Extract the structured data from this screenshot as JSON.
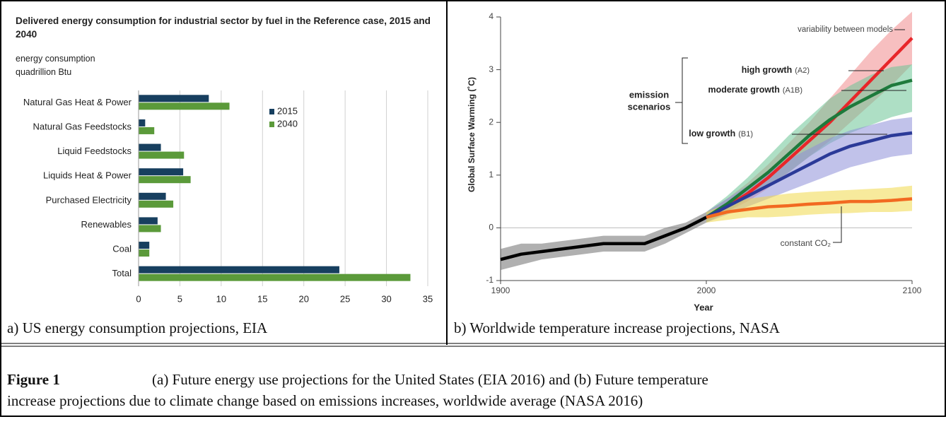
{
  "chart_data": [
    {
      "type": "hbar",
      "title": "Delivered energy consumption for industrial sector by fuel in the Reference case, 2015 and 2040",
      "subtitle": [
        "energy consumption",
        "quadrillion Btu"
      ],
      "categories": [
        "Natural Gas Heat & Power",
        "Natural Gas Feedstocks",
        "Liquid Feedstocks",
        "Liquids Heat & Power",
        "Purchased Electricity",
        "Renewables",
        "Coal",
        "Total"
      ],
      "series": [
        {
          "name": "2015",
          "color": "#173f5f",
          "values": [
            8.5,
            0.8,
            2.7,
            5.4,
            3.3,
            2.3,
            1.3,
            24.3
          ]
        },
        {
          "name": "2040",
          "color": "#5b9a3a",
          "values": [
            11,
            1.9,
            5.5,
            6.3,
            4.2,
            2.7,
            1.3,
            32.9
          ]
        }
      ],
      "xlim": [
        0,
        35
      ],
      "xticks": [
        0,
        5,
        10,
        15,
        20,
        25,
        30,
        35
      ],
      "grid": true,
      "legend": "top-right"
    },
    {
      "type": "line",
      "xlabel": "Year",
      "ylabel": "Global Surface Warming (˚C)",
      "xlim": [
        1900,
        2100
      ],
      "xticks": [
        1900,
        2000,
        2100
      ],
      "ylim": [
        -1,
        4
      ],
      "yticks": [
        -1,
        0,
        1,
        2,
        3,
        4
      ],
      "annotations": {
        "variability": "variability between models",
        "group": [
          "emission",
          "scenarios"
        ]
      },
      "series": [
        {
          "color": "#000000",
          "band_color": "#707070",
          "x": [
            1900,
            1910,
            1920,
            1930,
            1940,
            1950,
            1960,
            1970,
            1980,
            1990,
            2000
          ],
          "values": [
            -0.6,
            -0.5,
            -0.45,
            -0.4,
            -0.35,
            -0.3,
            -0.3,
            -0.3,
            -0.15,
            0.0,
            0.2
          ],
          "upper": [
            -0.4,
            -0.3,
            -0.3,
            -0.25,
            -0.2,
            -0.15,
            -0.15,
            -0.15,
            0.0,
            0.1,
            0.3
          ],
          "lower": [
            -0.8,
            -0.7,
            -0.6,
            -0.55,
            -0.5,
            -0.45,
            -0.45,
            -0.45,
            -0.3,
            -0.1,
            0.1
          ]
        },
        {
          "name": "high growth",
          "scenario": "(A2)",
          "color": "#e8262a",
          "band_color": "#f08a8c",
          "x": [
            2000,
            2010,
            2020,
            2030,
            2040,
            2050,
            2060,
            2070,
            2080,
            2090,
            2100
          ],
          "values": [
            0.2,
            0.4,
            0.65,
            0.95,
            1.3,
            1.65,
            2.0,
            2.4,
            2.8,
            3.2,
            3.6
          ],
          "upper": [
            0.3,
            0.55,
            0.85,
            1.2,
            1.6,
            2.0,
            2.45,
            2.9,
            3.35,
            3.75,
            4.1
          ],
          "lower": [
            0.1,
            0.3,
            0.5,
            0.75,
            1.05,
            1.35,
            1.65,
            2.0,
            2.35,
            2.7,
            3.1
          ]
        },
        {
          "name": "moderate growth",
          "scenario": "(A1B)",
          "color": "#1e7a3c",
          "band_color": "#6cc596",
          "x": [
            2000,
            2010,
            2020,
            2030,
            2040,
            2050,
            2060,
            2070,
            2080,
            2090,
            2100
          ],
          "values": [
            0.2,
            0.45,
            0.75,
            1.05,
            1.4,
            1.75,
            2.05,
            2.3,
            2.5,
            2.7,
            2.8
          ],
          "upper": [
            0.3,
            0.6,
            0.95,
            1.35,
            1.75,
            2.1,
            2.45,
            2.7,
            2.9,
            3.05,
            3.1
          ],
          "lower": [
            0.1,
            0.3,
            0.55,
            0.8,
            1.05,
            1.35,
            1.6,
            1.8,
            1.95,
            2.1,
            2.2
          ]
        },
        {
          "name": "low growth",
          "scenario": "(B1)",
          "color": "#2b3a98",
          "band_color": "#8e8fd8",
          "x": [
            2000,
            2010,
            2020,
            2030,
            2040,
            2050,
            2060,
            2070,
            2080,
            2090,
            2100
          ],
          "values": [
            0.2,
            0.4,
            0.6,
            0.8,
            1.0,
            1.2,
            1.4,
            1.55,
            1.65,
            1.75,
            1.8
          ],
          "upper": [
            0.3,
            0.55,
            0.8,
            1.05,
            1.3,
            1.5,
            1.7,
            1.85,
            1.95,
            2.05,
            2.1
          ],
          "lower": [
            0.1,
            0.25,
            0.4,
            0.55,
            0.7,
            0.85,
            1.0,
            1.15,
            1.25,
            1.35,
            1.4
          ]
        },
        {
          "name": "constant CO₂",
          "color": "#f26a21",
          "band_color": "#f0d84a",
          "x": [
            2000,
            2010,
            2020,
            2030,
            2040,
            2050,
            2060,
            2070,
            2080,
            2090,
            2100
          ],
          "values": [
            0.2,
            0.3,
            0.35,
            0.4,
            0.42,
            0.45,
            0.47,
            0.5,
            0.5,
            0.52,
            0.55
          ],
          "upper": [
            0.3,
            0.45,
            0.55,
            0.6,
            0.65,
            0.68,
            0.7,
            0.72,
            0.74,
            0.76,
            0.8
          ],
          "lower": [
            0.1,
            0.15,
            0.2,
            0.2,
            0.22,
            0.25,
            0.27,
            0.28,
            0.3,
            0.3,
            0.32
          ]
        }
      ]
    }
  ],
  "panel_captions": [
    "a) US energy consumption projections, EIA",
    "b) Worldwide temperature increase projections, NASA"
  ],
  "figure": {
    "label": "Figure 1",
    "text": [
      "(a) Future energy use projections for the United States (EIA 2016) and (b) Future temperature",
      "increase projections due to climate change based on emissions increases, worldwide average (NASA 2016)"
    ]
  }
}
